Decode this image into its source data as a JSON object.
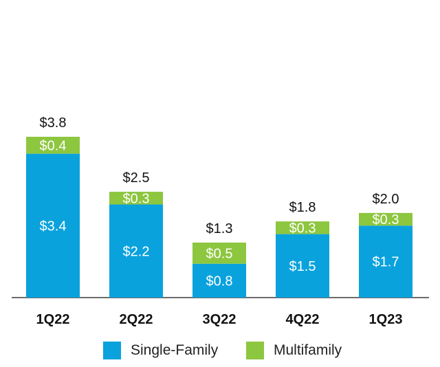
{
  "chart_data": {
    "type": "bar",
    "stacked": true,
    "categories": [
      "1Q22",
      "2Q22",
      "3Q22",
      "4Q22",
      "1Q23"
    ],
    "series": [
      {
        "name": "Single-Family",
        "color": "#0aa2dd",
        "values": [
          3.4,
          2.2,
          0.8,
          1.5,
          1.7
        ],
        "labels": [
          "$3.4",
          "$2.2",
          "$0.8",
          "$1.5",
          "$1.7"
        ]
      },
      {
        "name": "Multifamily",
        "color": "#8dc63f",
        "values": [
          0.4,
          0.3,
          0.5,
          0.3,
          0.3
        ],
        "labels": [
          "$0.4",
          "$0.3",
          "$0.5",
          "$0.3",
          "$0.3"
        ]
      }
    ],
    "totals": [
      3.8,
      2.5,
      1.3,
      1.8,
      2.0
    ],
    "total_labels": [
      "$3.8",
      "$2.5",
      "$1.3",
      "$1.8",
      "$2.0"
    ],
    "ylim": [
      0,
      3.8
    ],
    "grid": false,
    "legend_position": "bottom"
  }
}
